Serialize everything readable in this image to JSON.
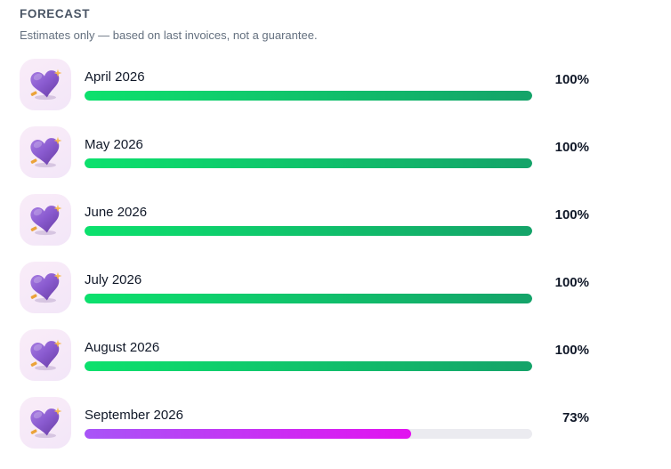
{
  "header": {
    "title": "FORECAST",
    "subtitle": "Estimates only — based on last invoices, not a guarantee."
  },
  "colors": {
    "track": "#ebebf0",
    "gradients": {
      "green": [
        "#0ce16d",
        "#14a369"
      ],
      "purple": [
        "#a855f7",
        "#e212f0"
      ]
    },
    "title_text": "#4a5565",
    "subtitle_text": "#64707f",
    "label_text": "#101828"
  },
  "icons": {
    "row_icon": "purple-heart-sparkle-icon"
  },
  "rows": [
    {
      "label": "April 2026",
      "percent": 100,
      "percent_label": "100%",
      "color": "green"
    },
    {
      "label": "May 2026",
      "percent": 100,
      "percent_label": "100%",
      "color": "green"
    },
    {
      "label": "June 2026",
      "percent": 100,
      "percent_label": "100%",
      "color": "green"
    },
    {
      "label": "July 2026",
      "percent": 100,
      "percent_label": "100%",
      "color": "green"
    },
    {
      "label": "August 2026",
      "percent": 100,
      "percent_label": "100%",
      "color": "green"
    },
    {
      "label": "September 2026",
      "percent": 73,
      "percent_label": "73%",
      "color": "purple"
    }
  ]
}
